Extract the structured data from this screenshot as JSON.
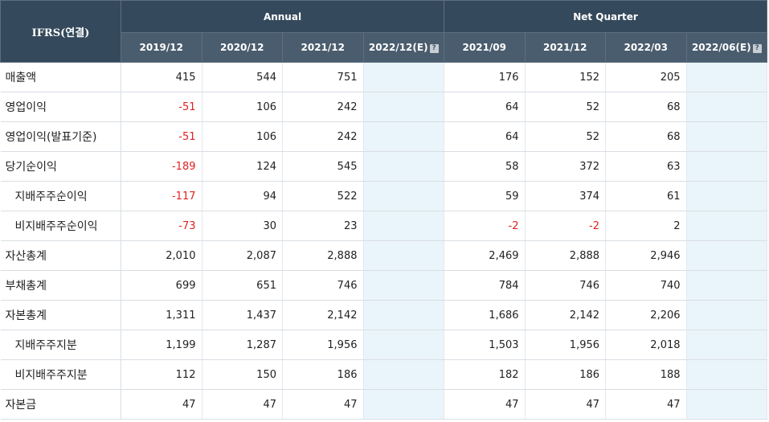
{
  "header": {
    "corner_label": "IFRS(연결)",
    "annual_label": "Annual",
    "quarter_label": "Net Quarter",
    "annual_periods": [
      "2019/12",
      "2020/12",
      "2021/12",
      "2022/12(E)"
    ],
    "quarter_periods": [
      "2021/09",
      "2021/12",
      "2022/03",
      "2022/06(E)"
    ],
    "help_icon_glyph": "?"
  },
  "colors": {
    "header_bg": "#34495b",
    "subheader_bg": "#4a5d6e",
    "estimate_bg": "#eaf5fb",
    "negative_text": "#e02020"
  },
  "rows": [
    {
      "label": "매출액",
      "sub": false,
      "annual": [
        "415",
        "544",
        "751",
        ""
      ],
      "quarter": [
        "176",
        "152",
        "205",
        ""
      ]
    },
    {
      "label": "영업이익",
      "sub": false,
      "annual": [
        "-51",
        "106",
        "242",
        ""
      ],
      "quarter": [
        "64",
        "52",
        "68",
        ""
      ]
    },
    {
      "label": "영업이익(발표기준)",
      "sub": false,
      "annual": [
        "-51",
        "106",
        "242",
        ""
      ],
      "quarter": [
        "64",
        "52",
        "68",
        ""
      ]
    },
    {
      "label": "당기순이익",
      "sub": false,
      "annual": [
        "-189",
        "124",
        "545",
        ""
      ],
      "quarter": [
        "58",
        "372",
        "63",
        ""
      ]
    },
    {
      "label": "지배주주순이익",
      "sub": true,
      "annual": [
        "-117",
        "94",
        "522",
        ""
      ],
      "quarter": [
        "59",
        "374",
        "61",
        ""
      ]
    },
    {
      "label": "비지배주주순이익",
      "sub": true,
      "annual": [
        "-73",
        "30",
        "23",
        ""
      ],
      "quarter": [
        "-2",
        "-2",
        "2",
        ""
      ]
    },
    {
      "label": "자산총계",
      "sub": false,
      "annual": [
        "2,010",
        "2,087",
        "2,888",
        ""
      ],
      "quarter": [
        "2,469",
        "2,888",
        "2,946",
        ""
      ]
    },
    {
      "label": "부채총계",
      "sub": false,
      "annual": [
        "699",
        "651",
        "746",
        ""
      ],
      "quarter": [
        "784",
        "746",
        "740",
        ""
      ]
    },
    {
      "label": "자본총계",
      "sub": false,
      "annual": [
        "1,311",
        "1,437",
        "2,142",
        ""
      ],
      "quarter": [
        "1,686",
        "2,142",
        "2,206",
        ""
      ]
    },
    {
      "label": "지배주주지분",
      "sub": true,
      "annual": [
        "1,199",
        "1,287",
        "1,956",
        ""
      ],
      "quarter": [
        "1,503",
        "1,956",
        "2,018",
        ""
      ]
    },
    {
      "label": "비지배주주지분",
      "sub": true,
      "annual": [
        "112",
        "150",
        "186",
        ""
      ],
      "quarter": [
        "182",
        "186",
        "188",
        ""
      ]
    },
    {
      "label": "자본금",
      "sub": false,
      "annual": [
        "47",
        "47",
        "47",
        ""
      ],
      "quarter": [
        "47",
        "47",
        "47",
        ""
      ]
    }
  ]
}
